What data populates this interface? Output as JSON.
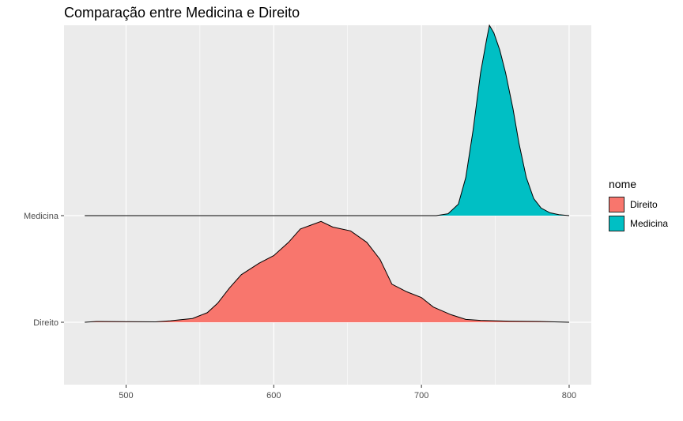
{
  "title": "Comparação entre Medicina e Direito",
  "chart_data": {
    "type": "ridgeline",
    "title": "Comparação entre Medicina e Direito",
    "xlabel": "",
    "ylabel": "",
    "xlim": [
      458,
      815
    ],
    "x_ticks": [
      500,
      600,
      700,
      800
    ],
    "y_categories": [
      "Direito",
      "Medicina"
    ],
    "grid": true,
    "legend": {
      "title": "nome",
      "position": "right",
      "entries": [
        {
          "name": "Direito",
          "color": "#F8766D"
        },
        {
          "name": "Medicina",
          "color": "#00BFC4"
        }
      ]
    },
    "series": [
      {
        "name": "Direito",
        "color": "#F8766D",
        "density_max": 0.55,
        "points": [
          [
            472,
            0
          ],
          [
            480,
            0.004
          ],
          [
            500,
            0.003
          ],
          [
            520,
            0.002
          ],
          [
            530,
            0.008
          ],
          [
            545,
            0.02
          ],
          [
            555,
            0.05
          ],
          [
            562,
            0.1
          ],
          [
            570,
            0.18
          ],
          [
            578,
            0.25
          ],
          [
            590,
            0.31
          ],
          [
            600,
            0.35
          ],
          [
            610,
            0.42
          ],
          [
            618,
            0.49
          ],
          [
            625,
            0.51
          ],
          [
            632,
            0.53
          ],
          [
            640,
            0.5
          ],
          [
            652,
            0.48
          ],
          [
            663,
            0.42
          ],
          [
            672,
            0.33
          ],
          [
            680,
            0.2
          ],
          [
            690,
            0.16
          ],
          [
            700,
            0.13
          ],
          [
            708,
            0.08
          ],
          [
            720,
            0.04
          ],
          [
            730,
            0.015
          ],
          [
            740,
            0.01
          ],
          [
            760,
            0.006
          ],
          [
            780,
            0.004
          ],
          [
            800,
            0
          ]
        ]
      },
      {
        "name": "Medicina",
        "color": "#00BFC4",
        "density_max": 1.0,
        "points": [
          [
            472,
            0
          ],
          [
            710,
            0
          ],
          [
            718,
            0.01
          ],
          [
            725,
            0.06
          ],
          [
            730,
            0.2
          ],
          [
            735,
            0.45
          ],
          [
            740,
            0.75
          ],
          [
            744,
            0.92
          ],
          [
            746,
            1.0
          ],
          [
            749,
            0.96
          ],
          [
            753,
            0.87
          ],
          [
            757,
            0.75
          ],
          [
            762,
            0.56
          ],
          [
            766,
            0.38
          ],
          [
            771,
            0.2
          ],
          [
            776,
            0.09
          ],
          [
            781,
            0.04
          ],
          [
            787,
            0.015
          ],
          [
            793,
            0.005
          ],
          [
            800,
            0
          ]
        ]
      }
    ]
  }
}
